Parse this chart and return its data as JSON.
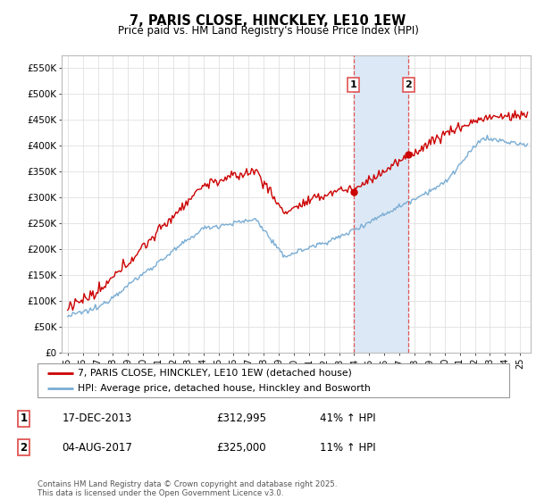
{
  "title": "7, PARIS CLOSE, HINCKLEY, LE10 1EW",
  "subtitle": "Price paid vs. HM Land Registry's House Price Index (HPI)",
  "ytick_values": [
    0,
    50000,
    100000,
    150000,
    200000,
    250000,
    300000,
    350000,
    400000,
    450000,
    500000,
    550000
  ],
  "ylim": [
    0,
    575000
  ],
  "xlim_start": 1994.6,
  "xlim_end": 2025.7,
  "red_line_color": "#cc0000",
  "blue_line_color": "#7aadd4",
  "shade_color": "#dce8f5",
  "vline_color": "#e05555",
  "transaction1_x": 2013.96,
  "transaction2_x": 2017.6,
  "transaction1_price": 312995,
  "transaction2_price": 325000,
  "legend_line1": "7, PARIS CLOSE, HINCKLEY, LE10 1EW (detached house)",
  "legend_line2": "HPI: Average price, detached house, Hinckley and Bosworth",
  "table_row1": [
    "1",
    "17-DEC-2013",
    "£312,995",
    "41% ↑ HPI"
  ],
  "table_row2": [
    "2",
    "04-AUG-2017",
    "£325,000",
    "11% ↑ HPI"
  ],
  "footer": "Contains HM Land Registry data © Crown copyright and database right 2025.\nThis data is licensed under the Open Government Licence v3.0.",
  "grid_color": "#e0e0e0",
  "background_color": "#ffffff"
}
